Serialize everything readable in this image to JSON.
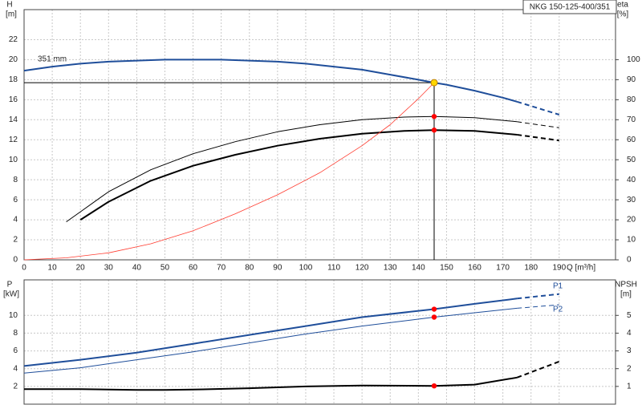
{
  "chart_data": [
    {
      "type": "line",
      "title": "NKG 150-125-400/351",
      "annotation": "351 mm",
      "ylabel": "H",
      "yunit": "[m]",
      "y2label": "eta",
      "y2unit": "[%]",
      "xlabel": "Q [m³/h]",
      "xlim": [
        0,
        210
      ],
      "xticks": [
        0,
        10,
        20,
        30,
        40,
        50,
        60,
        70,
        80,
        90,
        100,
        110,
        120,
        130,
        140,
        150,
        160,
        170,
        180,
        190
      ],
      "ylim": [
        0,
        25
      ],
      "yticks": [
        0,
        2,
        4,
        6,
        8,
        10,
        12,
        14,
        16,
        18,
        20,
        22
      ],
      "y2lim": [
        0,
        125
      ],
      "y2ticks": [
        0,
        10,
        20,
        30,
        40,
        50,
        60,
        70,
        80,
        90,
        100
      ],
      "grid": true,
      "series": [
        {
          "color": "#1f4e9a",
          "line_width": 2,
          "dashed": false,
          "x": [
            0,
            10,
            20,
            30,
            40,
            50,
            60,
            70,
            80,
            90,
            100,
            110,
            120,
            130,
            140,
            145.6,
            150,
            160,
            170,
            175
          ],
          "values": [
            18.9,
            19.3,
            19.6,
            19.8,
            19.9,
            20.0,
            20.0,
            20.0,
            19.9,
            19.8,
            19.6,
            19.3,
            19.0,
            18.5,
            18.0,
            17.7,
            17.5,
            16.9,
            16.2,
            15.8
          ]
        },
        {
          "color": "#1f4e9a",
          "line_width": 2,
          "dashed": true,
          "x": [
            175,
            190
          ],
          "values": [
            15.8,
            14.5
          ]
        },
        {
          "color": "#000000",
          "line_width": 1,
          "dashed": false,
          "axis": "y2",
          "x": [
            15,
            20,
            30,
            45,
            60,
            75,
            90,
            105,
            120,
            135,
            145.6,
            160,
            175
          ],
          "values": [
            19,
            24,
            34,
            45,
            53,
            59,
            64,
            67.5,
            70,
            71.3,
            71.6,
            71,
            69
          ]
        },
        {
          "color": "#000000",
          "line_width": 1,
          "dashed": true,
          "axis": "y2",
          "x": [
            175,
            190
          ],
          "values": [
            69,
            66
          ]
        },
        {
          "color": "#000000",
          "line_width": 2,
          "dashed": false,
          "axis": "y2",
          "x": [
            20,
            30,
            45,
            60,
            75,
            90,
            105,
            120,
            135,
            145.6,
            160,
            175
          ],
          "values": [
            20,
            29,
            39.5,
            47,
            52.5,
            57,
            60.5,
            63,
            64.4,
            64.8,
            64.4,
            62.5
          ]
        },
        {
          "color": "#000000",
          "line_width": 2,
          "dashed": true,
          "axis": "y2",
          "x": [
            175,
            190
          ],
          "values": [
            62.5,
            59.6
          ]
        },
        {
          "color": "#ff3b2f",
          "line_width": 0.8,
          "dashed": false,
          "x": [
            0,
            15,
            30,
            45,
            60,
            75,
            90,
            105,
            120,
            130,
            140,
            145.6
          ],
          "values": [
            0,
            0.2,
            0.7,
            1.6,
            2.9,
            4.6,
            6.5,
            8.7,
            11.4,
            13.5,
            16.1,
            17.7
          ]
        }
      ],
      "markers": [
        {
          "x": 145.6,
          "y": 17.7,
          "color": "#ffd700",
          "crosshair": true
        },
        {
          "x": 145.6,
          "y": 71.6,
          "axis": "y2",
          "color": "#ff0000"
        },
        {
          "x": 145.6,
          "y": 64.8,
          "axis": "y2",
          "color": "#ff0000"
        }
      ]
    },
    {
      "type": "line",
      "ylabel": "P",
      "yunit": "[kW]",
      "y2label": "NPSH",
      "y2unit": "[m]",
      "xlim": [
        0,
        210
      ],
      "ylim": [
        0,
        14
      ],
      "yticks": [
        2,
        4,
        6,
        8,
        10
      ],
      "y2lim": [
        0,
        7
      ],
      "y2ticks": [
        1,
        2,
        3,
        4,
        5
      ],
      "grid": true,
      "series": [
        {
          "name": "P1",
          "color": "#1f4e9a",
          "line_width": 2,
          "dashed": false,
          "x": [
            0,
            20,
            40,
            60,
            80,
            100,
            120,
            145.6,
            160,
            175
          ],
          "values": [
            4.3,
            5.0,
            5.8,
            6.8,
            7.8,
            8.8,
            9.8,
            10.7,
            11.3,
            11.9
          ]
        },
        {
          "color": "#1f4e9a",
          "line_width": 2,
          "dashed": true,
          "x": [
            175,
            190
          ],
          "values": [
            11.9,
            12.4
          ]
        },
        {
          "name": "P2",
          "color": "#1f4e9a",
          "line_width": 1,
          "dashed": false,
          "x": [
            0,
            20,
            40,
            60,
            80,
            100,
            120,
            145.6,
            160,
            175
          ],
          "values": [
            3.5,
            4.1,
            5.0,
            5.9,
            6.9,
            7.9,
            8.8,
            9.8,
            10.3,
            10.8
          ]
        },
        {
          "color": "#1f4e9a",
          "line_width": 1,
          "dashed": true,
          "x": [
            175,
            190
          ],
          "values": [
            10.8,
            11.2
          ]
        },
        {
          "color": "#000000",
          "line_width": 2,
          "dashed": false,
          "axis": "y2",
          "x": [
            0,
            20,
            40,
            50,
            60,
            80,
            100,
            120,
            145.6,
            160,
            175
          ],
          "values": [
            0.85,
            0.85,
            0.8,
            0.8,
            0.82,
            0.9,
            1.0,
            1.05,
            1.03,
            1.1,
            1.5
          ]
        },
        {
          "color": "#000000",
          "line_width": 2,
          "dashed": true,
          "axis": "y2",
          "x": [
            175,
            190
          ],
          "values": [
            1.5,
            2.4
          ]
        }
      ],
      "markers": [
        {
          "x": 145.6,
          "y": 10.7,
          "color": "#ff0000"
        },
        {
          "x": 145.6,
          "y": 9.8,
          "color": "#ff0000"
        },
        {
          "x": 145.6,
          "y": 1.03,
          "axis": "y2",
          "color": "#ff0000"
        }
      ]
    }
  ]
}
